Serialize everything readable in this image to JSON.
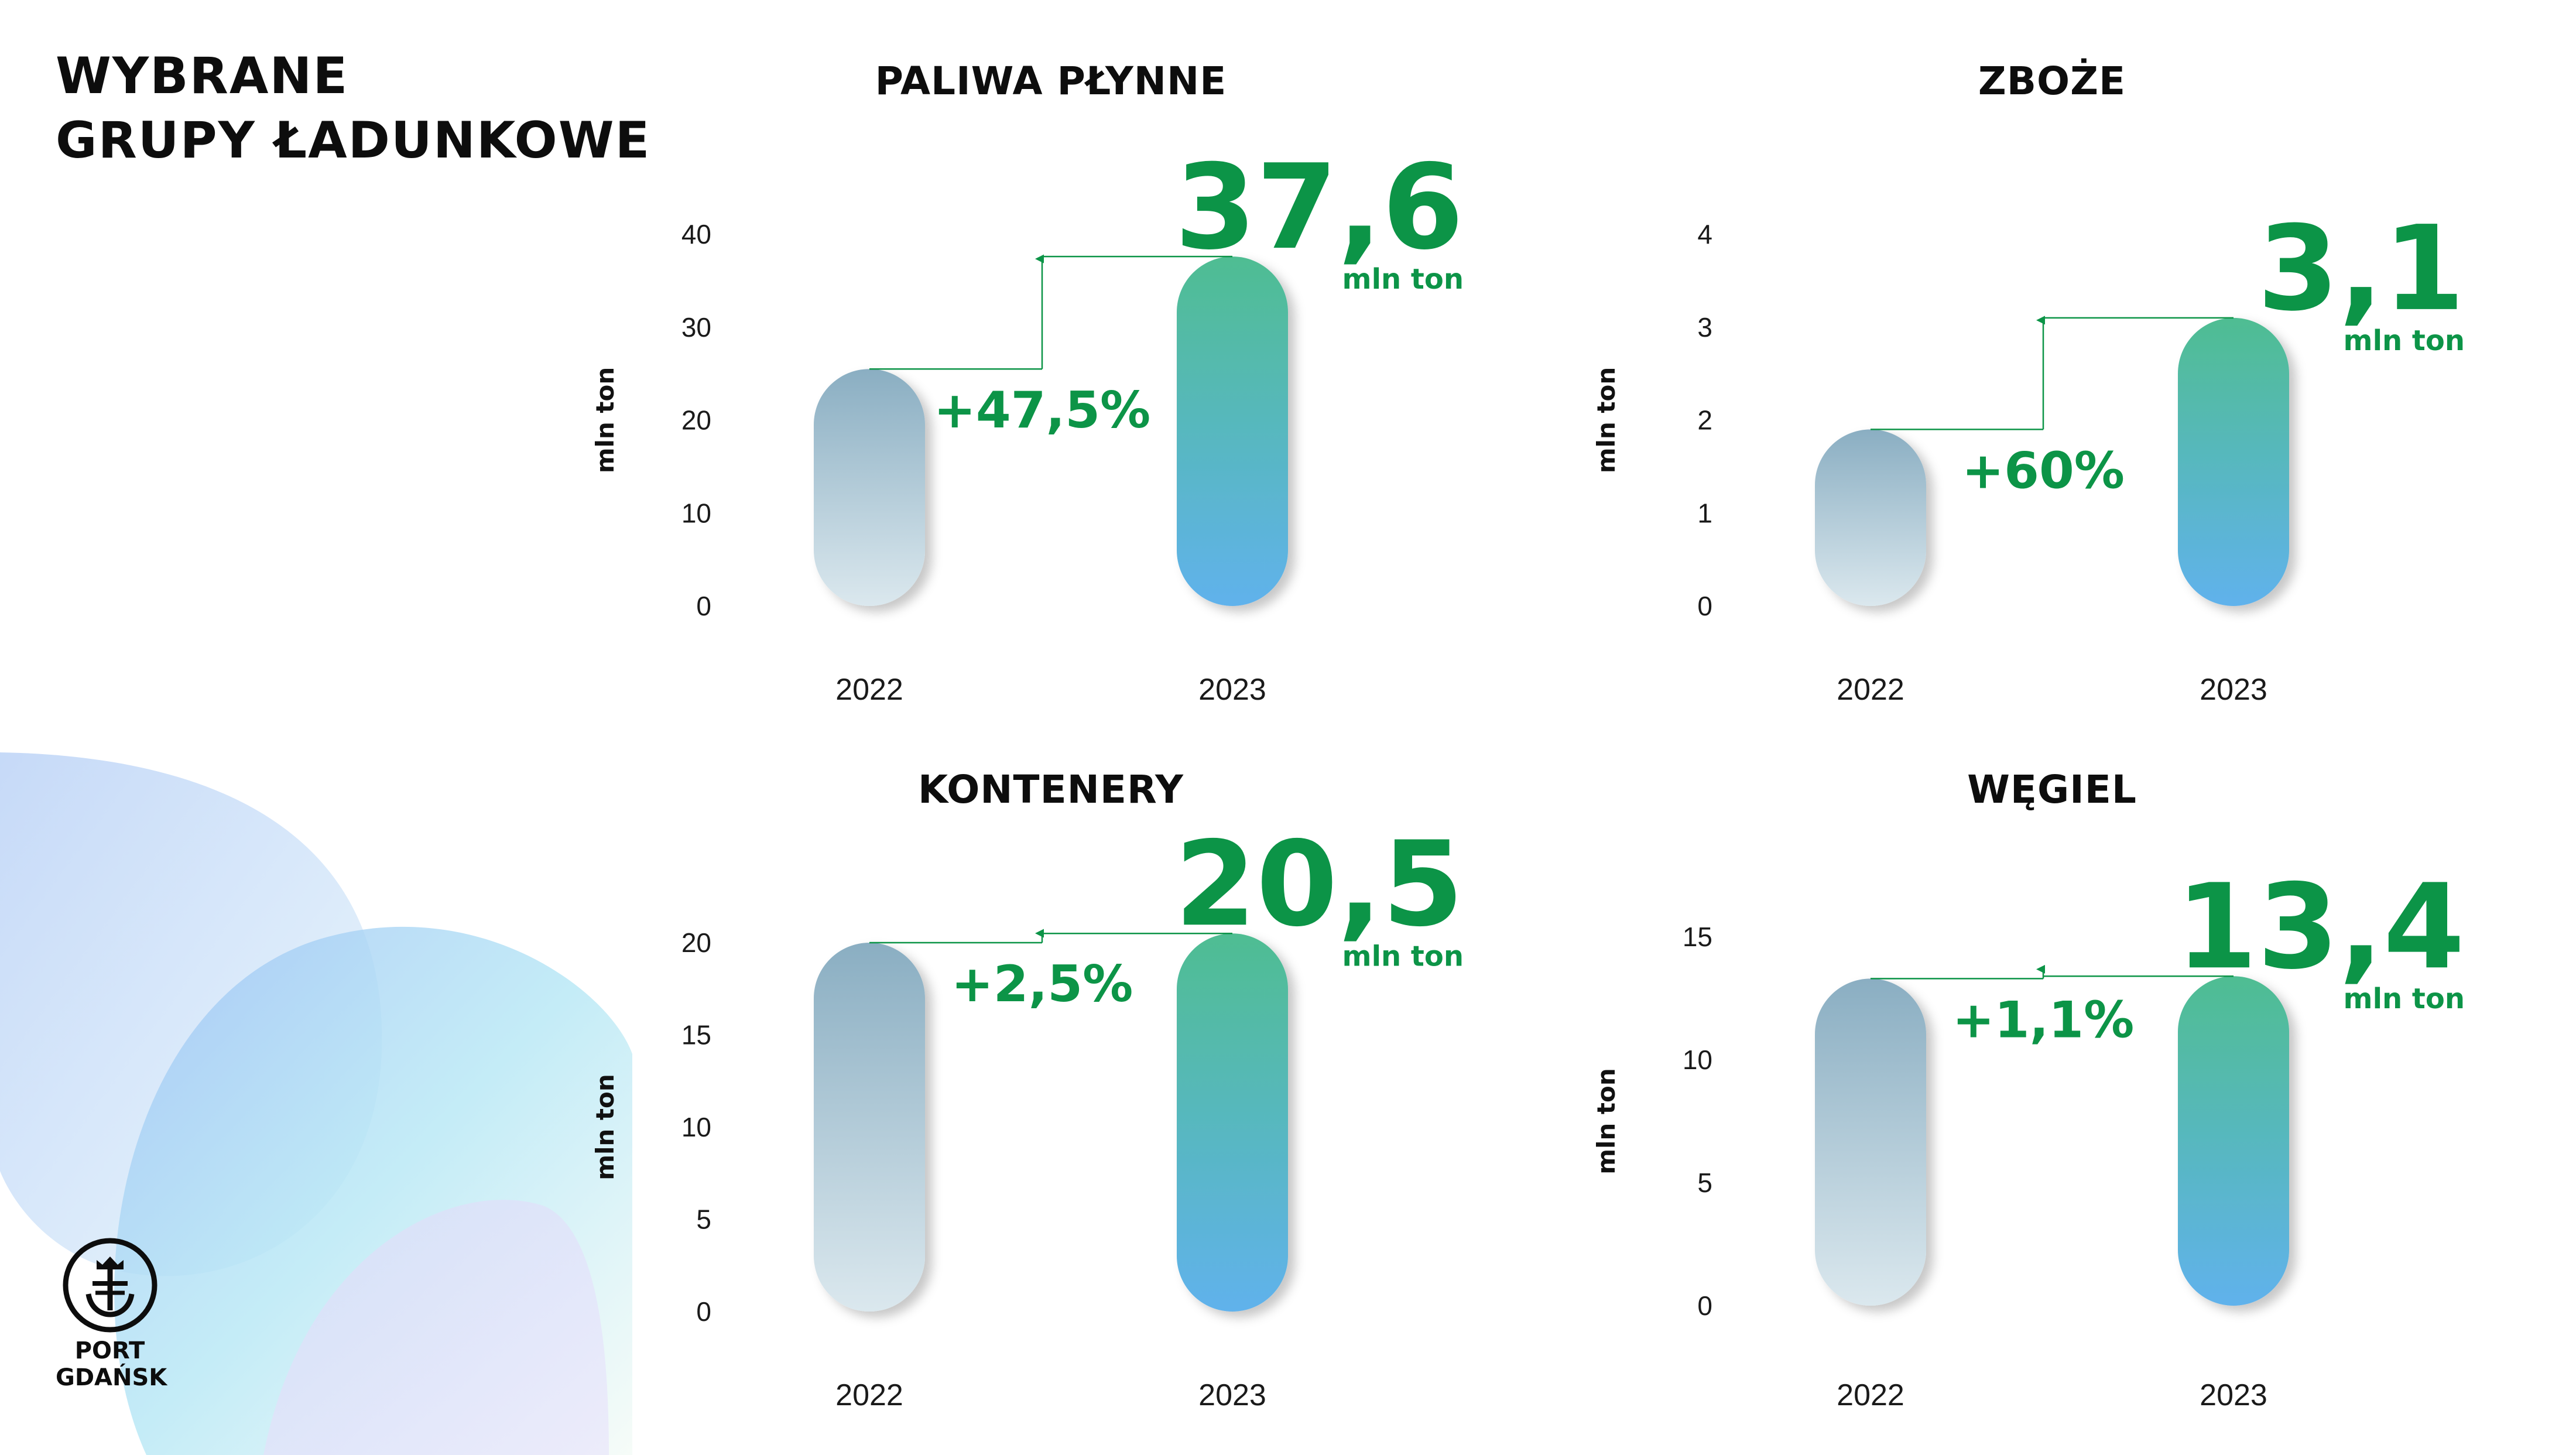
{
  "title": {
    "line1": "WYBRANE",
    "line2": "GRUPY  ŁADUNKOWE"
  },
  "brand": {
    "line1": "PORT",
    "line2": "GDAŃSK",
    "logo_icon": "anchor-crown-icon"
  },
  "colors": {
    "accent_green": "#0c9447",
    "bar_2022_top": "#8aaec2",
    "bar_2022_bottom": "#dbe8ee",
    "bar_2023_top": "#4fbd92",
    "bar_2023_bottom": "#60b2ec"
  },
  "chart_data": [
    {
      "type": "bar",
      "title": "PALIWA PŁYNNE",
      "ylabel": "mln ton",
      "ylim": [
        0,
        40
      ],
      "yticks": [
        0,
        10,
        20,
        30,
        40
      ],
      "categories": [
        "2022",
        "2023"
      ],
      "values": [
        25.5,
        37.6
      ],
      "highlight_value": "37,6",
      "highlight_unit": "mln ton",
      "change_label": "+47,5%"
    },
    {
      "type": "bar",
      "title": "ZBOŻE",
      "ylabel": "mln ton",
      "ylim": [
        0,
        4
      ],
      "yticks": [
        0,
        1,
        2,
        3,
        4
      ],
      "categories": [
        "2022",
        "2023"
      ],
      "values": [
        1.9,
        3.1
      ],
      "highlight_value": "3,1",
      "highlight_unit": "mln ton",
      "change_label": "+60%"
    },
    {
      "type": "bar",
      "title": "KONTENERY",
      "ylabel": "mln ton",
      "ylim": [
        0,
        20
      ],
      "yticks": [
        0,
        5,
        10,
        15,
        20
      ],
      "categories": [
        "2022",
        "2023"
      ],
      "values": [
        20.0,
        20.5
      ],
      "highlight_value": "20,5",
      "highlight_unit": "mln ton",
      "change_label": "+2,5%"
    },
    {
      "type": "bar",
      "title": "WĘGIEL",
      "ylabel": "mln ton",
      "ylim": [
        0,
        15
      ],
      "yticks": [
        0,
        5,
        10,
        15
      ],
      "categories": [
        "2022",
        "2023"
      ],
      "values": [
        13.3,
        13.4
      ],
      "highlight_value": "13,4",
      "highlight_unit": "mln ton",
      "change_label": "+1,1%"
    }
  ]
}
